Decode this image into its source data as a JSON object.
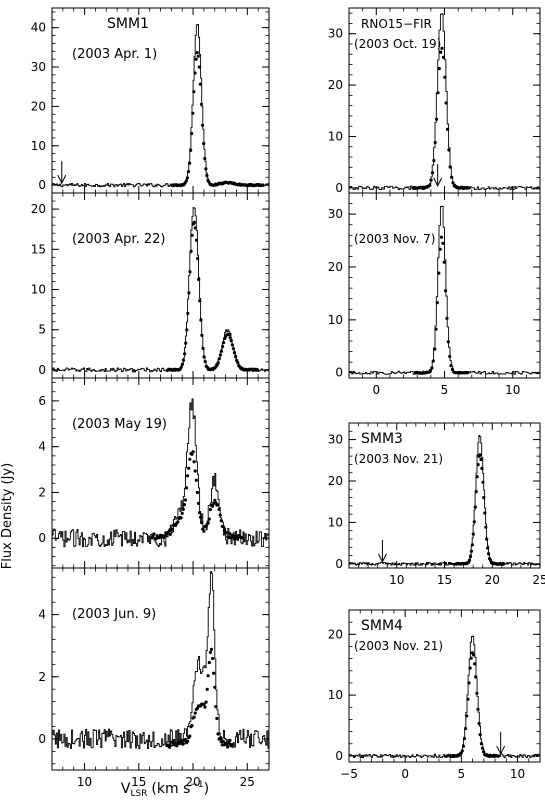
{
  "figure": {
    "ylabel": "Flux Density (Jy)",
    "xlabel_main": "V",
    "xlabel_sub": "LSR",
    "xlabel_units": "(km s",
    "xlabel_exp": "−1",
    "xlabel_close": ")"
  },
  "chart_data": [
    {
      "type": "line",
      "column": "left",
      "source": "SMM1",
      "date": "(2003 Apr. 1)",
      "xlim": [
        7,
        27
      ],
      "ylim": [
        -2,
        45
      ],
      "yticks": [
        0,
        10,
        20,
        30,
        40
      ],
      "xticks": [
        10,
        15,
        20,
        25
      ],
      "show_xtick_labels": false,
      "arrow_x": 7.9,
      "peaks": [
        [
          20.4,
          41,
          0.38
        ],
        [
          23.2,
          0.8,
          0.6
        ]
      ],
      "noise": 0.45,
      "dot_scale": 0.82,
      "dot_offset": 0.0
    },
    {
      "type": "line",
      "column": "left",
      "source": "",
      "date": "(2003 Apr. 22)",
      "xlim": [
        7,
        27
      ],
      "ylim": [
        -1,
        22
      ],
      "yticks": [
        0,
        5,
        10,
        15,
        20
      ],
      "xticks": [
        10,
        15,
        20,
        25
      ],
      "show_xtick_labels": false,
      "peaks": [
        [
          20.1,
          20.5,
          0.42
        ],
        [
          23.2,
          5.0,
          0.5
        ]
      ],
      "noise": 0.25,
      "dot_scale": 0.9,
      "dot_offset": 0.0
    },
    {
      "type": "line",
      "column": "left",
      "source": "",
      "date": "(2003 May 19)",
      "xlim": [
        7,
        27
      ],
      "ylim": [
        -1.3,
        7
      ],
      "yticks": [
        0,
        2,
        4,
        6
      ],
      "xticks": [
        10,
        15,
        20,
        25
      ],
      "show_xtick_labels": false,
      "peaks": [
        [
          19.9,
          5.9,
          0.45
        ],
        [
          22.0,
          2.5,
          0.45
        ],
        [
          18.6,
          1.0,
          0.4
        ]
      ],
      "noise": 0.38,
      "dot_scale": 0.62,
      "dot_offset": 0.1
    },
    {
      "type": "line",
      "column": "left",
      "source": "",
      "date": "(2003 Jun. 9)",
      "xlim": [
        7,
        27
      ],
      "ylim": [
        -1,
        5.5
      ],
      "yticks": [
        0,
        2,
        4
      ],
      "xticks": [
        10,
        15,
        20,
        25
      ],
      "xtick_labels": [
        "10",
        "15",
        "20",
        "25"
      ],
      "show_xtick_labels": true,
      "peaks": [
        [
          21.7,
          5.0,
          0.3
        ],
        [
          20.6,
          2.4,
          0.55
        ]
      ],
      "noise": 0.32,
      "dot_scale": 0.55,
      "dot_offset": -0.15
    },
    {
      "type": "line",
      "column": "right",
      "source": "RNO15−FIR",
      "date": "(2003 Oct. 19)",
      "xlim": [
        -2,
        12
      ],
      "ylim": [
        -1,
        35
      ],
      "yticks": [
        0,
        10,
        20,
        30
      ],
      "xticks": [
        0,
        5,
        10
      ],
      "show_xtick_labels": false,
      "arrow_x": 4.5,
      "peaks": [
        [
          4.8,
          34,
          0.32
        ]
      ],
      "noise": 0.35,
      "dot_scale": 0.8,
      "dot_offset": 0.0
    },
    {
      "type": "line",
      "column": "right",
      "source": "",
      "date": "(2003 Nov. 7)",
      "xlim": [
        -2,
        12
      ],
      "ylim": [
        -1,
        34
      ],
      "yticks": [
        0,
        10,
        20,
        30
      ],
      "xticks": [
        0,
        5,
        10
      ],
      "xtick_labels": [
        "0",
        "5",
        "10"
      ],
      "show_xtick_labels": true,
      "peaks": [
        [
          4.8,
          32,
          0.28
        ]
      ],
      "noise": 0.3,
      "dot_scale": 0.8,
      "dot_offset": 0.0
    },
    {
      "type": "line",
      "column": "right",
      "source": "SMM3",
      "date": "(2003 Nov. 21)",
      "xlim": [
        5,
        25
      ],
      "ylim": [
        -1,
        34
      ],
      "yticks": [
        0,
        10,
        20,
        30
      ],
      "xticks": [
        10,
        15,
        20,
        25
      ],
      "xtick_labels": [
        "10",
        "15",
        "20",
        "25"
      ],
      "show_xtick_labels": true,
      "arrow_x": 8.5,
      "peaks": [
        [
          18.7,
          31,
          0.42
        ]
      ],
      "noise": 0.35,
      "dot_scale": 0.85,
      "dot_offset": 0.0
    },
    {
      "type": "line",
      "column": "right",
      "source": "SMM4",
      "date": "(2003 Nov. 21)",
      "xlim": [
        -5,
        12
      ],
      "ylim": [
        -1,
        24
      ],
      "yticks": [
        0,
        10,
        20
      ],
      "xticks": [
        -5,
        0,
        5,
        10
      ],
      "xtick_labels": [
        "−5",
        "0",
        "5",
        "10"
      ],
      "show_xtick_labels": true,
      "arrow_x": 8.5,
      "peaks": [
        [
          6.0,
          20,
          0.38
        ]
      ],
      "noise": 0.3,
      "dot_scale": 0.85,
      "dot_offset": 0.0
    }
  ]
}
